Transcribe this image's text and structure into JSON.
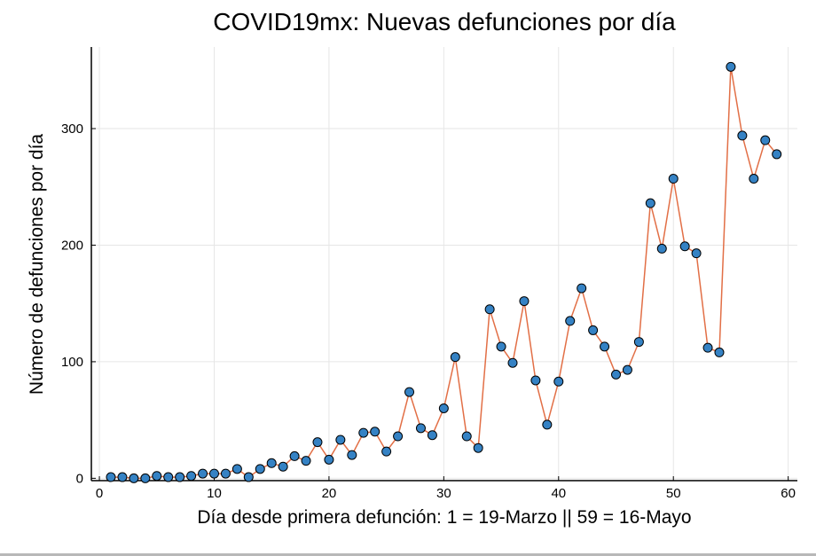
{
  "chart_data": {
    "type": "line",
    "title": "COVID19mx: Nuevas defunciones por día",
    "xlabel": "Día desde primera defunción: 1 = 19-Marzo || 59 = 16-Mayo",
    "ylabel": "Número de defunciones por día",
    "xlim": [
      -0.7,
      60.8
    ],
    "ylim": [
      -2,
      370
    ],
    "x_ticks": [
      0,
      10,
      20,
      30,
      40,
      50,
      60
    ],
    "y_ticks": [
      0,
      100,
      200,
      300
    ],
    "grid": true,
    "legend": "none",
    "line_color": "#e26f46",
    "marker_color": "#3582c4",
    "marker_edge_color": "#000000",
    "x": [
      1,
      2,
      3,
      4,
      5,
      6,
      7,
      8,
      9,
      10,
      11,
      12,
      13,
      14,
      15,
      16,
      17,
      18,
      19,
      20,
      21,
      22,
      23,
      24,
      25,
      26,
      27,
      28,
      29,
      30,
      31,
      32,
      33,
      34,
      35,
      36,
      37,
      38,
      39,
      40,
      41,
      42,
      43,
      44,
      45,
      46,
      47,
      48,
      49,
      50,
      51,
      52,
      53,
      54,
      55,
      56,
      57,
      58,
      59
    ],
    "values": [
      1,
      1,
      0,
      0,
      2,
      1,
      1,
      2,
      4,
      4,
      4,
      8,
      1,
      8,
      13,
      10,
      19,
      15,
      31,
      16,
      33,
      20,
      39,
      40,
      23,
      36,
      74,
      43,
      37,
      60,
      104,
      36,
      26,
      145,
      113,
      99,
      152,
      84,
      46,
      83,
      135,
      163,
      127,
      113,
      89,
      93,
      117,
      236,
      197,
      257,
      199,
      193,
      112,
      108,
      353,
      294,
      257,
      290,
      278
    ]
  }
}
